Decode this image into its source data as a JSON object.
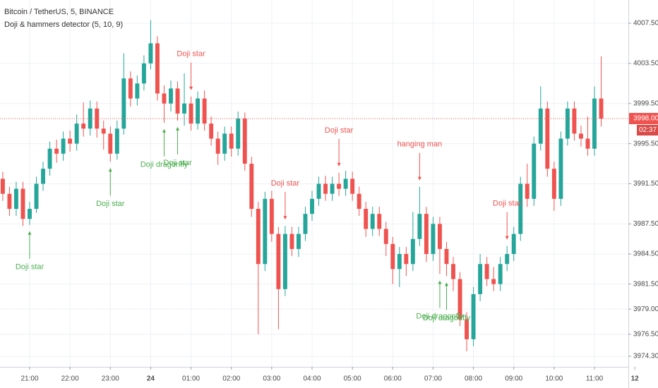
{
  "chart_data": {
    "type": "candlestick",
    "title": "Bitcoin / TetherUS, 5, BINANCE",
    "indicator": "Doji & hammers detector (5, 10, 9)",
    "up_color": "#26a69a",
    "down_color": "#ef5350",
    "grid": true,
    "categories": [
      null,
      null,
      null,
      null,
      "21:00",
      null,
      null,
      null,
      null,
      null,
      "22:00",
      null,
      null,
      null,
      null,
      null,
      "23:00",
      null,
      null,
      null,
      null,
      null,
      "24",
      null,
      null,
      null,
      null,
      null,
      "01:00",
      null,
      null,
      null,
      null,
      null,
      "02:00",
      null,
      null,
      null,
      null,
      null,
      "03:00",
      null,
      null,
      null,
      null,
      null,
      "04:00",
      null,
      null,
      null,
      null,
      null,
      "05:00",
      null,
      null,
      null,
      null,
      null,
      "06:00",
      null,
      null,
      null,
      null,
      null,
      "07:00",
      null,
      null,
      null,
      null,
      null,
      "08:00",
      null,
      null,
      null,
      null,
      null,
      "09:00",
      null,
      null,
      null,
      null,
      null,
      "10:00",
      null,
      null,
      null,
      null,
      null,
      "11:00",
      null,
      null,
      null,
      null,
      null,
      "12"
    ],
    "open": [
      3992,
      3990.5,
      3989,
      3991,
      3988,
      3989,
      3991.5,
      3993,
      3995,
      3994.5,
      3996,
      3995.5,
      3997.5,
      3997,
      3999,
      3997,
      3996.5,
      3994.5,
      3997,
      4002,
      4000,
      4001.5,
      4003.5,
      4005.5,
      4000.5,
      3999.5,
      4001,
      3998.5,
      3999.5,
      3997.5,
      4000,
      3997.5,
      3996,
      3994.5,
      3996.5,
      3995,
      3998,
      3993.5,
      3989,
      3983.5,
      3990,
      3986.5,
      3981,
      3986.5,
      3985,
      3986.5,
      3988.5,
      3990,
      3991.5,
      3990.5,
      3991.5,
      3991,
      3992,
      3990.5,
      3989,
      3987,
      3988.5,
      3987,
      3985.5,
      3983,
      3984.5,
      3983.5,
      3986,
      3988.5,
      3984.5,
      3987.5,
      3985,
      3983.5,
      3982,
      3978,
      3976,
      3980.5,
      3983.5,
      3982,
      3981.5,
      3983.5,
      3984.5,
      3986.5,
      3991.5,
      3990,
      3995.5,
      3999,
      3993,
      3990,
      3996,
      3999,
      3996.5,
      3996,
      3995,
      4000,
      null,
      null,
      null,
      null,
      null
    ],
    "high": [
      3992.7,
      3991.2,
      3991.7,
      3991.7,
      3989.7,
      3992.2,
      3993.7,
      3995.7,
      3995.9,
      3996.7,
      3996.8,
      3998.4,
      3999.6,
      3999.8,
      3999.7,
      3997.8,
      3997.2,
      3997.8,
      4004.5,
      4002.7,
      4002.3,
      4004.3,
      4007.8,
      4006.2,
      4001.3,
      4001.8,
      4001.7,
      4002.5,
      4000.2,
      4000.7,
      4000.8,
      3998.2,
      3996.7,
      3997.2,
      3997.2,
      3998.7,
      3998.6,
      3994.2,
      3989.7,
      3990.7,
      3990.8,
      3987.2,
      3987.3,
      3987.2,
      3987.2,
      3989.2,
      3990.8,
      3992.2,
      3992.3,
      3992.2,
      3992.6,
      3992.8,
      3992.7,
      3991.2,
      3989.7,
      3989.2,
      3989.2,
      3987.7,
      3986.2,
      3985.2,
      3985.2,
      3988.7,
      3991.2,
      3989.2,
      3988.2,
      3988.2,
      3985.7,
      3984.2,
      3982.7,
      3978.7,
      3981.2,
      3984.5,
      3984.2,
      3983.2,
      3984.2,
      3985.3,
      3987.2,
      3992.2,
      3993.5,
      3996.2,
      4001.2,
      3999.7,
      3993.7,
      3996.7,
      3999.7,
      3999.7,
      3997.3,
      3998.2,
      4001.2,
      4004.2,
      null,
      null,
      null,
      null,
      null
    ],
    "low": [
      3989.8,
      3988.3,
      3988.3,
      3987.3,
      3987.4,
      3988.6,
      3990.8,
      3992.3,
      3993.6,
      3993.8,
      3994.7,
      3994.8,
      3996.2,
      3996.3,
      3996.1,
      3994.9,
      3993.7,
      3993.9,
      3996.4,
      3999.2,
      3999.3,
      4000.8,
      4002.9,
      3999.8,
      3997.6,
      3998.7,
      3997.8,
      3997.3,
      3996.8,
      3996.9,
      3996.8,
      3995.3,
      3993.4,
      3993.8,
      3994.2,
      3994.3,
      3992.8,
      3988.2,
      3976.5,
      3982.8,
      3985.7,
      3977,
      3980.3,
      3984.3,
      3984.2,
      3985.8,
      3987.8,
      3989.3,
      3989.8,
      3989.8,
      3990.3,
      3990.3,
      3989.8,
      3988.3,
      3986.2,
      3986.3,
      3986.3,
      3984.3,
      3981.5,
      3981.2,
      3982.3,
      3982.8,
      3985.3,
      3983.7,
      3983.8,
      3982.5,
      3982.3,
      3980.8,
      3977.3,
      3974.8,
      3975.3,
      3979.8,
      3981.3,
      3980.8,
      3980.8,
      3982.8,
      3983.8,
      3985.8,
      3989.2,
      3989.3,
      3994.8,
      3992.2,
      3988.8,
      3989.3,
      3995.3,
      3995.8,
      3995.2,
      3994.3,
      3994.3,
      3997.2,
      null,
      null,
      null,
      null,
      null
    ],
    "close": [
      3990.5,
      3989,
      3991,
      3988,
      3989,
      3991.5,
      3993,
      3995,
      3994.5,
      3996,
      3995.5,
      3997.5,
      3997,
      3999,
      3997,
      3996.5,
      3994.5,
      3997,
      4002,
      4000,
      4001.5,
      4003.5,
      4005.5,
      4000.5,
      3999.5,
      4001,
      3998.5,
      3999.5,
      3997.5,
      4000,
      3997.5,
      3996,
      3994.5,
      3996.5,
      3995,
      3998,
      3993.5,
      3989,
      3983.5,
      3990,
      3986.5,
      3981,
      3986.5,
      3985,
      3986.5,
      3988.5,
      3990,
      3991.5,
      3990.5,
      3991.5,
      3991,
      3992,
      3990.5,
      3989,
      3987,
      3988.5,
      3987,
      3985.5,
      3983,
      3984.5,
      3983.5,
      3986,
      3988.5,
      3984.5,
      3987.5,
      3985,
      3983.5,
      3982,
      3978,
      3976,
      3980.5,
      3983.5,
      3982,
      3981.5,
      3983.5,
      3984.5,
      3986.5,
      3991.5,
      3990,
      3995.5,
      3999,
      3993,
      3990,
      3996,
      3999,
      3996.5,
      3996,
      3995,
      4000,
      3998,
      null,
      null,
      null,
      null,
      null
    ],
    "ylim": [
      3973.25,
      4009.82
    ],
    "yticks": [
      {
        "value": 4007.5,
        "label": "4007.50"
      },
      {
        "value": 4003.5,
        "label": "4003.50"
      },
      {
        "value": 3999.5,
        "label": "3999.50"
      },
      {
        "value": 3995.5,
        "label": "3995.50"
      },
      {
        "value": 3991.5,
        "label": "3991.50"
      },
      {
        "value": 3987.5,
        "label": "3987.50"
      },
      {
        "value": 3984.5,
        "label": "3984.50"
      },
      {
        "value": 3981.5,
        "label": "3981.50"
      },
      {
        "value": 3979,
        "label": "3979.00"
      },
      {
        "value": 3976.5,
        "label": "3976.50"
      },
      {
        "value": 3974.3,
        "label": "3974.30"
      }
    ],
    "last_price": {
      "value": 3998,
      "label": "3998.00"
    },
    "countdown": "02:37",
    "annotations": [
      {
        "text": "Doji star",
        "index": 28,
        "side": "above",
        "color": "#ef5350"
      },
      {
        "text": "Doji star",
        "index": 50,
        "side": "above",
        "color": "#ef5350"
      },
      {
        "text": "Doji star",
        "index": 42,
        "side": "above",
        "color": "#ef5350"
      },
      {
        "text": "hanging man",
        "index": 62,
        "side": "above",
        "color": "#ef5350"
      },
      {
        "text": "Doji star",
        "index": 75,
        "side": "above",
        "color": "#ef5350"
      },
      {
        "text": "Doji star",
        "index": 4,
        "side": "below",
        "color": "#4caf50"
      },
      {
        "text": "Doji star",
        "index": 16,
        "side": "below",
        "color": "#4caf50"
      },
      {
        "text": "Doji dragonfly",
        "index": 24,
        "side": "below",
        "color": "#4caf50"
      },
      {
        "text": "Doji star",
        "index": 26,
        "side": "below",
        "color": "#4caf50"
      },
      {
        "text": "Doji dragonfly",
        "index": 65,
        "side": "below",
        "color": "#4caf50"
      },
      {
        "text": "Doji dragonfly",
        "index": 66,
        "side": "below",
        "color": "#4caf50"
      }
    ]
  }
}
